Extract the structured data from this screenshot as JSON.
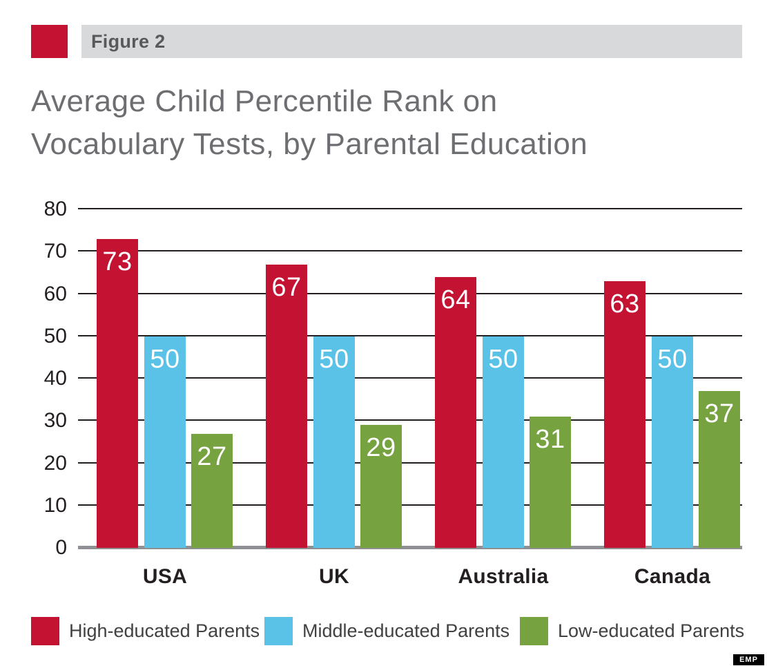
{
  "header": {
    "figure_label": "Figure 2"
  },
  "title": {
    "line1": "Average Child Percentile Rank on",
    "line2": "Vocabulary Tests, by Parental Education"
  },
  "branding": {
    "badge": "EMP"
  },
  "colors": {
    "accent_red": "#c41233",
    "accent_blue": "#5bc2e7",
    "accent_green": "#76a240",
    "band_gray": "#d8d9da",
    "title_gray": "#6d6e71",
    "axis_black": "#231f20",
    "baseline_gray": "#8e9093"
  },
  "chart_data": {
    "type": "bar",
    "title": "Average Child Percentile Rank on Vocabulary Tests, by Parental Education",
    "categories": [
      "USA",
      "UK",
      "Australia",
      "Canada"
    ],
    "series": [
      {
        "name": "High-educated Parents",
        "color": "#c41233",
        "values": [
          73,
          67,
          64,
          63
        ]
      },
      {
        "name": "Middle-educated Parents",
        "color": "#5bc2e7",
        "values": [
          50,
          50,
          50,
          50
        ]
      },
      {
        "name": "Low-educated Parents",
        "color": "#76a240",
        "values": [
          27,
          29,
          31,
          37
        ]
      }
    ],
    "xlabel": "",
    "ylabel": "",
    "ylim": [
      0,
      80
    ],
    "yticks": [
      0,
      10,
      20,
      30,
      40,
      50,
      60,
      70,
      80
    ],
    "grid": true,
    "value_labels": "inside-top",
    "legend_position": "bottom"
  }
}
